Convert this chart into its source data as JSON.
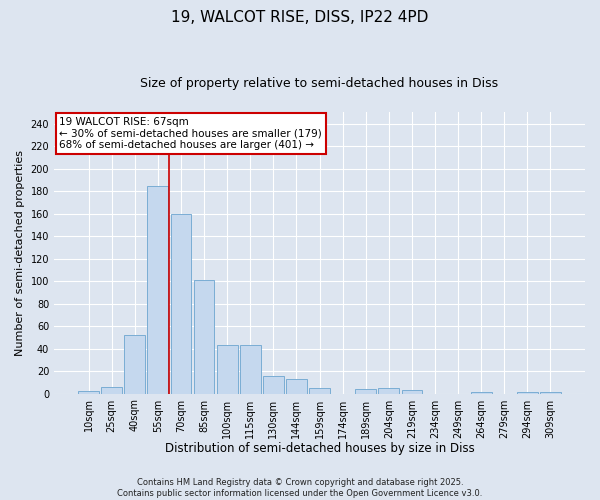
{
  "title": "19, WALCOT RISE, DISS, IP22 4PD",
  "subtitle": "Size of property relative to semi-detached houses in Diss",
  "xlabel": "Distribution of semi-detached houses by size in Diss",
  "ylabel": "Number of semi-detached properties",
  "categories": [
    "10sqm",
    "25sqm",
    "40sqm",
    "55sqm",
    "70sqm",
    "85sqm",
    "100sqm",
    "115sqm",
    "130sqm",
    "144sqm",
    "159sqm",
    "174sqm",
    "189sqm",
    "204sqm",
    "219sqm",
    "234sqm",
    "249sqm",
    "264sqm",
    "279sqm",
    "294sqm",
    "309sqm"
  ],
  "values": [
    2,
    6,
    52,
    185,
    160,
    101,
    43,
    43,
    16,
    13,
    5,
    0,
    4,
    5,
    3,
    0,
    0,
    1,
    0,
    1,
    1
  ],
  "bar_color": "#c5d8ee",
  "bar_edge_color": "#7aadd4",
  "background_color": "#dde5f0",
  "grid_color": "#ffffff",
  "annotation_line1": "19 WALCOT RISE: 67sqm",
  "annotation_line2": "← 30% of semi-detached houses are smaller (179)",
  "annotation_line3": "68% of semi-detached houses are larger (401) →",
  "annotation_box_color": "#ffffff",
  "annotation_box_edge": "#cc0000",
  "vline_color": "#cc0000",
  "vline_index": 3.5,
  "ylim": [
    0,
    250
  ],
  "yticks": [
    0,
    20,
    40,
    60,
    80,
    100,
    120,
    140,
    160,
    180,
    200,
    220,
    240
  ],
  "footer": "Contains HM Land Registry data © Crown copyright and database right 2025.\nContains public sector information licensed under the Open Government Licence v3.0.",
  "title_fontsize": 11,
  "subtitle_fontsize": 9,
  "xlabel_fontsize": 8.5,
  "ylabel_fontsize": 8,
  "tick_fontsize": 7,
  "annotation_fontsize": 7.5,
  "footer_fontsize": 6
}
